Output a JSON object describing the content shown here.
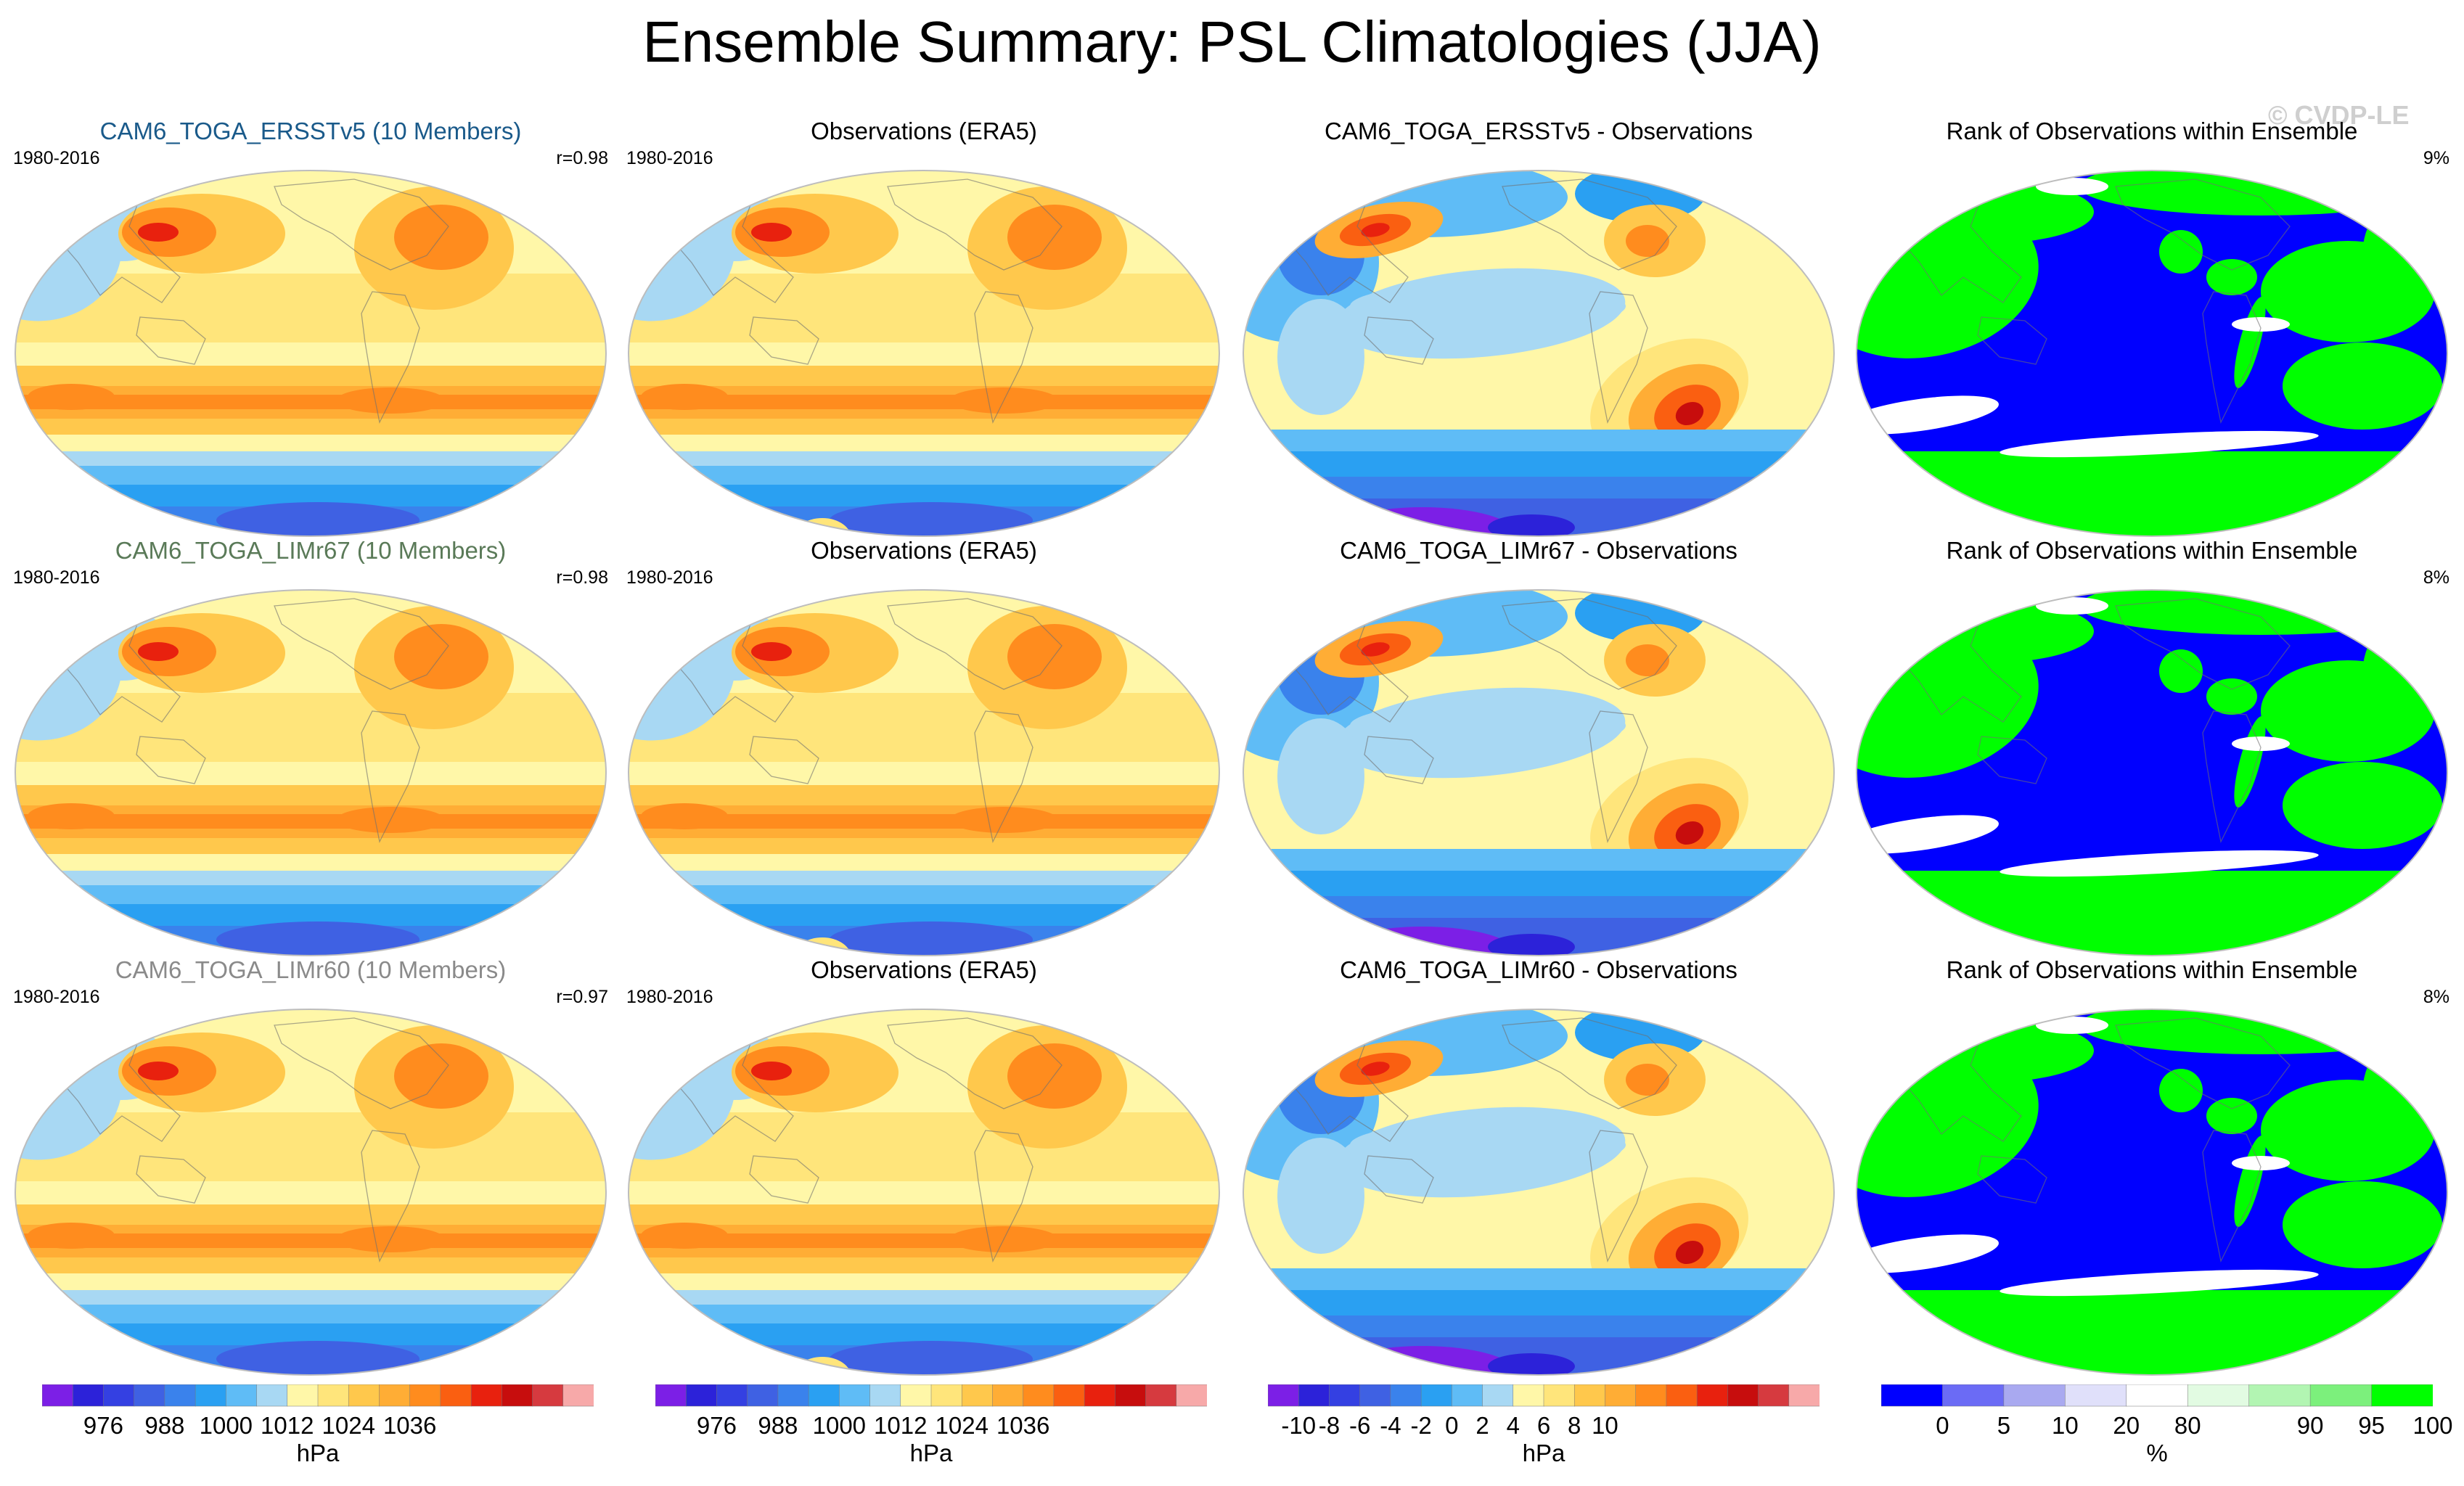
{
  "page_title": "Ensemble Summary: PSL Climatologies (JJA)",
  "watermark": "© CVDP-LE",
  "colors": {
    "psl_scale": [
      "#7c1fe6",
      "#2c22d9",
      "#3440e2",
      "#3f61e3",
      "#3a82ec",
      "#2aa0f2",
      "#5fbcf6",
      "#a8d8f3",
      "#fff7a8",
      "#ffe57b",
      "#ffc84c",
      "#ffad35",
      "#ff8c1e",
      "#fa5f11",
      "#e8210e",
      "#c70d0d",
      "#d63a3f",
      "#f7a9a9"
    ],
    "rank_scale": [
      "#0000ff",
      "#6b6bf5",
      "#a9a9f0",
      "#e0e0fa",
      "#ffffff",
      "#e2fbe2",
      "#b2f5b2",
      "#7cf07c",
      "#00ff00"
    ]
  },
  "chart_data": [
    {
      "type": "heatmap",
      "title": "CAM6_TOGA_ERSSTv5 (10 Members)",
      "title_color": "#1a5a8a",
      "period": "1980-2016",
      "pattern_corr": "r=0.98",
      "field": "PSL",
      "season": "JJA",
      "units": "hPa"
    },
    {
      "type": "heatmap",
      "title": "Observations (ERA5)",
      "period": "1980-2016",
      "field": "PSL",
      "season": "JJA",
      "units": "hPa"
    },
    {
      "type": "heatmap",
      "title": "CAM6_TOGA_ERSSTv5 - Observations",
      "field": "PSL difference",
      "units": "hPa"
    },
    {
      "type": "heatmap",
      "title": "Rank of Observations within Ensemble",
      "percent": "9%",
      "units": "%"
    },
    {
      "type": "heatmap",
      "title": "CAM6_TOGA_LIMr67 (10 Members)",
      "title_color": "#5a7a58",
      "period": "1980-2016",
      "pattern_corr": "r=0.98",
      "field": "PSL",
      "season": "JJA",
      "units": "hPa"
    },
    {
      "type": "heatmap",
      "title": "Observations (ERA5)",
      "period": "1980-2016",
      "field": "PSL",
      "season": "JJA",
      "units": "hPa"
    },
    {
      "type": "heatmap",
      "title": "CAM6_TOGA_LIMr67 - Observations",
      "field": "PSL difference",
      "units": "hPa"
    },
    {
      "type": "heatmap",
      "title": "Rank of Observations within Ensemble",
      "percent": "8%",
      "units": "%"
    },
    {
      "type": "heatmap",
      "title": "CAM6_TOGA_LIMr60 (10 Members)",
      "title_color": "#8a8a8a",
      "period": "1980-2016",
      "pattern_corr": "r=0.97",
      "field": "PSL",
      "season": "JJA",
      "units": "hPa"
    },
    {
      "type": "heatmap",
      "title": "Observations (ERA5)",
      "period": "1980-2016",
      "field": "PSL",
      "season": "JJA",
      "units": "hPa"
    },
    {
      "type": "heatmap",
      "title": "CAM6_TOGA_LIMr60 - Observations",
      "field": "PSL difference",
      "units": "hPa"
    },
    {
      "type": "heatmap",
      "title": "Rank of Observations within Ensemble",
      "percent": "8%",
      "units": "%"
    }
  ],
  "colorbars": [
    {
      "units": "hPa",
      "labels": [
        "976",
        "988",
        "1000",
        "1012",
        "1024",
        "1036"
      ],
      "levels": [
        976,
        988,
        1000,
        1012,
        1024,
        1036
      ]
    },
    {
      "units": "hPa",
      "labels": [
        "976",
        "988",
        "1000",
        "1012",
        "1024",
        "1036"
      ],
      "levels": [
        976,
        988,
        1000,
        1012,
        1024,
        1036
      ]
    },
    {
      "units": "hPa",
      "labels": [
        "-10",
        "-8",
        "-6",
        "-4",
        "-2",
        "0",
        "2",
        "4",
        "6",
        "8",
        "10"
      ],
      "levels": [
        -10,
        -8,
        -6,
        -4,
        -2,
        0,
        2,
        4,
        6,
        8,
        10
      ]
    },
    {
      "units": "%",
      "labels": [
        "0",
        "5",
        "10",
        "20",
        "80",
        "90",
        "95",
        "100"
      ],
      "levels": [
        0,
        5,
        10,
        20,
        80,
        90,
        95,
        100
      ]
    }
  ]
}
